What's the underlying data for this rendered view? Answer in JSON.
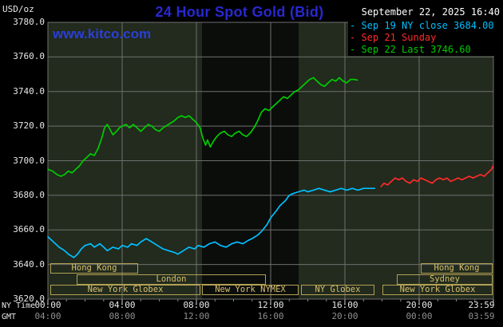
{
  "header": {
    "title": "24 Hour Spot Gold (Bid)",
    "datetime": "September 22, 2025 16:40",
    "watermark": "www.kitco.com"
  },
  "legend": {
    "items": [
      {
        "label": "- Sep 19 NY close 3684.00",
        "color": "#00bfff"
      },
      {
        "label": "- Sep 21 Sunday",
        "color": "#ff2a2a"
      },
      {
        "label": "- Sep 22 Last 3746.60",
        "color": "#00cc00"
      }
    ]
  },
  "axes": {
    "y_unit": "USD/oz",
    "x_axis_left_label": "NY Time",
    "gmt_row_label": "GMT",
    "x_ticks": [
      {
        "h": 0,
        "ny": "00:00",
        "gmt": "04:00"
      },
      {
        "h": 4,
        "ny": "04:00",
        "gmt": "08:00"
      },
      {
        "h": 8,
        "ny": "08:00",
        "gmt": "12:00"
      },
      {
        "h": 12,
        "ny": "12:00",
        "gmt": "16:00"
      },
      {
        "h": 16,
        "ny": "16:00",
        "gmt": "20:00"
      },
      {
        "h": 20,
        "ny": "20:00",
        "gmt": "00:00"
      },
      {
        "h": 24,
        "ny": "23:59",
        "gmt": "03:59"
      }
    ]
  },
  "sessions": [
    {
      "label": "Hong Kong",
      "row": 0,
      "start": 0.15,
      "end": 4.9
    },
    {
      "label": "London",
      "row": 1,
      "start": 1.55,
      "end": 11.75
    },
    {
      "label": "New York Globex",
      "row": 2,
      "start": 0.15,
      "end": 8.25
    },
    {
      "label": "New York NYMEX",
      "row": 2,
      "start": 8.3,
      "end": 13.5
    },
    {
      "label": "NY Globex",
      "row": 2,
      "start": 13.65,
      "end": 17.6
    },
    {
      "label": "New York Globex",
      "row": 2,
      "start": 18.0,
      "end": 23.95
    },
    {
      "label": "Sydney",
      "row": 1,
      "start": 18.8,
      "end": 23.95
    },
    {
      "label": "Hong Kong",
      "row": 0,
      "start": 20.1,
      "end": 23.95
    }
  ],
  "colors": {
    "background": "#000000",
    "plot_bg": "#222b1d",
    "band": "#0b0d0b",
    "grid": "#6f6f6f",
    "title_blue": "#2828d0",
    "kitco_blue": "#2a3fd8",
    "text_white": "#e8e8e8",
    "gmt_gray": "#8f8f8f",
    "session_border": "#b3a055",
    "session_text": "#d8c070"
  },
  "chart_data": {
    "type": "line",
    "title": "24 Hour Spot Gold (Bid)",
    "xlabel": "NY Time",
    "ylabel": "USD/oz",
    "x_range_hours": [
      0,
      24
    ],
    "ylim": [
      3620,
      3780
    ],
    "x_ticks_hours": [
      0,
      4,
      8,
      12,
      16,
      20,
      24
    ],
    "y_ticks": [
      3620,
      3640,
      3660,
      3680,
      3700,
      3720,
      3740,
      3760,
      3780
    ],
    "grid": true,
    "legend_position": "top-right",
    "nymex_band_hours": [
      8.3,
      13.5
    ],
    "series": [
      {
        "name": "Sep 19 NY close",
        "close_value": 3684.0,
        "color": "#00bfff",
        "points": [
          [
            0,
            3656
          ],
          [
            0.3,
            3653
          ],
          [
            0.6,
            3650
          ],
          [
            0.9,
            3648
          ],
          [
            1.1,
            3646
          ],
          [
            1.4,
            3644
          ],
          [
            1.6,
            3646
          ],
          [
            1.8,
            3649
          ],
          [
            2,
            3651
          ],
          [
            2.3,
            3652
          ],
          [
            2.5,
            3650
          ],
          [
            2.8,
            3652
          ],
          [
            3,
            3650
          ],
          [
            3.2,
            3648
          ],
          [
            3.5,
            3650
          ],
          [
            3.8,
            3649
          ],
          [
            4,
            3651
          ],
          [
            4.3,
            3650
          ],
          [
            4.5,
            3652
          ],
          [
            4.8,
            3651
          ],
          [
            5,
            3653
          ],
          [
            5.3,
            3655
          ],
          [
            5.6,
            3653
          ],
          [
            5.9,
            3651
          ],
          [
            6.2,
            3649
          ],
          [
            6.5,
            3648
          ],
          [
            6.8,
            3647
          ],
          [
            7,
            3646
          ],
          [
            7.3,
            3648
          ],
          [
            7.6,
            3650
          ],
          [
            7.9,
            3649
          ],
          [
            8.1,
            3651
          ],
          [
            8.4,
            3650
          ],
          [
            8.7,
            3652
          ],
          [
            9,
            3653
          ],
          [
            9.3,
            3651
          ],
          [
            9.6,
            3650
          ],
          [
            9.9,
            3652
          ],
          [
            10.2,
            3653
          ],
          [
            10.5,
            3652
          ],
          [
            10.8,
            3654
          ],
          [
            11,
            3655
          ],
          [
            11.3,
            3657
          ],
          [
            11.5,
            3659
          ],
          [
            11.8,
            3663
          ],
          [
            12,
            3667
          ],
          [
            12.3,
            3671
          ],
          [
            12.5,
            3674
          ],
          [
            12.8,
            3677
          ],
          [
            13,
            3680
          ],
          [
            13.2,
            3681
          ],
          [
            13.5,
            3682
          ],
          [
            13.8,
            3683
          ],
          [
            14,
            3682
          ],
          [
            14.3,
            3683
          ],
          [
            14.6,
            3684
          ],
          [
            14.9,
            3683
          ],
          [
            15.2,
            3682
          ],
          [
            15.5,
            3683
          ],
          [
            15.8,
            3684
          ],
          [
            16.1,
            3683
          ],
          [
            16.4,
            3684
          ],
          [
            16.7,
            3683
          ],
          [
            17,
            3684
          ],
          [
            17.3,
            3684
          ],
          [
            17.6,
            3684
          ]
        ]
      },
      {
        "name": "Sep 21 Sunday",
        "color": "#ff2a2a",
        "points": [
          [
            17.95,
            3685
          ],
          [
            18.1,
            3687
          ],
          [
            18.3,
            3686
          ],
          [
            18.5,
            3688
          ],
          [
            18.7,
            3690
          ],
          [
            18.9,
            3689
          ],
          [
            19.1,
            3690
          ],
          [
            19.3,
            3688
          ],
          [
            19.5,
            3687
          ],
          [
            19.7,
            3689
          ],
          [
            19.9,
            3688
          ],
          [
            20.1,
            3690
          ],
          [
            20.3,
            3689
          ],
          [
            20.5,
            3688
          ],
          [
            20.7,
            3687
          ],
          [
            20.9,
            3689
          ],
          [
            21.1,
            3690
          ],
          [
            21.3,
            3689
          ],
          [
            21.5,
            3690
          ],
          [
            21.7,
            3688
          ],
          [
            21.9,
            3689
          ],
          [
            22.1,
            3690
          ],
          [
            22.3,
            3689
          ],
          [
            22.5,
            3690
          ],
          [
            22.7,
            3691
          ],
          [
            22.9,
            3690
          ],
          [
            23.1,
            3691
          ],
          [
            23.3,
            3692
          ],
          [
            23.5,
            3691
          ],
          [
            23.7,
            3693
          ],
          [
            23.9,
            3695
          ],
          [
            23.98,
            3697
          ]
        ]
      },
      {
        "name": "Sep 22 Last",
        "last_value": 3746.6,
        "color": "#00cc00",
        "points": [
          [
            0,
            3695
          ],
          [
            0.25,
            3694
          ],
          [
            0.5,
            3692
          ],
          [
            0.7,
            3691
          ],
          [
            0.9,
            3692
          ],
          [
            1.1,
            3694
          ],
          [
            1.3,
            3693
          ],
          [
            1.5,
            3695
          ],
          [
            1.7,
            3697
          ],
          [
            1.9,
            3700
          ],
          [
            2.1,
            3702
          ],
          [
            2.3,
            3704
          ],
          [
            2.5,
            3703
          ],
          [
            2.7,
            3707
          ],
          [
            2.9,
            3713
          ],
          [
            3.05,
            3719
          ],
          [
            3.2,
            3721
          ],
          [
            3.35,
            3718
          ],
          [
            3.5,
            3715
          ],
          [
            3.7,
            3717
          ],
          [
            3.85,
            3719
          ],
          [
            4,
            3720
          ],
          [
            4.2,
            3721
          ],
          [
            4.4,
            3719
          ],
          [
            4.6,
            3721
          ],
          [
            4.8,
            3719
          ],
          [
            5,
            3717
          ],
          [
            5.2,
            3719
          ],
          [
            5.4,
            3721
          ],
          [
            5.6,
            3720
          ],
          [
            5.8,
            3718
          ],
          [
            6,
            3717
          ],
          [
            6.2,
            3719
          ],
          [
            6.5,
            3721
          ],
          [
            6.8,
            3723
          ],
          [
            7,
            3725
          ],
          [
            7.2,
            3726
          ],
          [
            7.4,
            3725
          ],
          [
            7.6,
            3726
          ],
          [
            7.8,
            3724
          ],
          [
            8,
            3722
          ],
          [
            8.2,
            3719
          ],
          [
            8.35,
            3713
          ],
          [
            8.5,
            3709
          ],
          [
            8.6,
            3712
          ],
          [
            8.75,
            3708
          ],
          [
            8.9,
            3711
          ],
          [
            9.1,
            3714
          ],
          [
            9.3,
            3716
          ],
          [
            9.5,
            3717
          ],
          [
            9.7,
            3715
          ],
          [
            9.9,
            3714
          ],
          [
            10.1,
            3716
          ],
          [
            10.3,
            3717
          ],
          [
            10.5,
            3715
          ],
          [
            10.7,
            3714
          ],
          [
            10.9,
            3716
          ],
          [
            11.1,
            3719
          ],
          [
            11.3,
            3723
          ],
          [
            11.5,
            3728
          ],
          [
            11.7,
            3730
          ],
          [
            11.9,
            3729
          ],
          [
            12.1,
            3731
          ],
          [
            12.3,
            3733
          ],
          [
            12.5,
            3735
          ],
          [
            12.7,
            3737
          ],
          [
            12.9,
            3736
          ],
          [
            13.1,
            3738
          ],
          [
            13.3,
            3740
          ],
          [
            13.5,
            3741
          ],
          [
            13.7,
            3743
          ],
          [
            13.9,
            3745
          ],
          [
            14.1,
            3747
          ],
          [
            14.3,
            3748
          ],
          [
            14.5,
            3746
          ],
          [
            14.7,
            3744
          ],
          [
            14.9,
            3743
          ],
          [
            15.1,
            3745
          ],
          [
            15.3,
            3747
          ],
          [
            15.5,
            3746
          ],
          [
            15.7,
            3748
          ],
          [
            15.9,
            3746
          ],
          [
            16.1,
            3745
          ],
          [
            16.3,
            3747
          ],
          [
            16.5,
            3747
          ],
          [
            16.67,
            3746.6
          ]
        ]
      }
    ]
  }
}
